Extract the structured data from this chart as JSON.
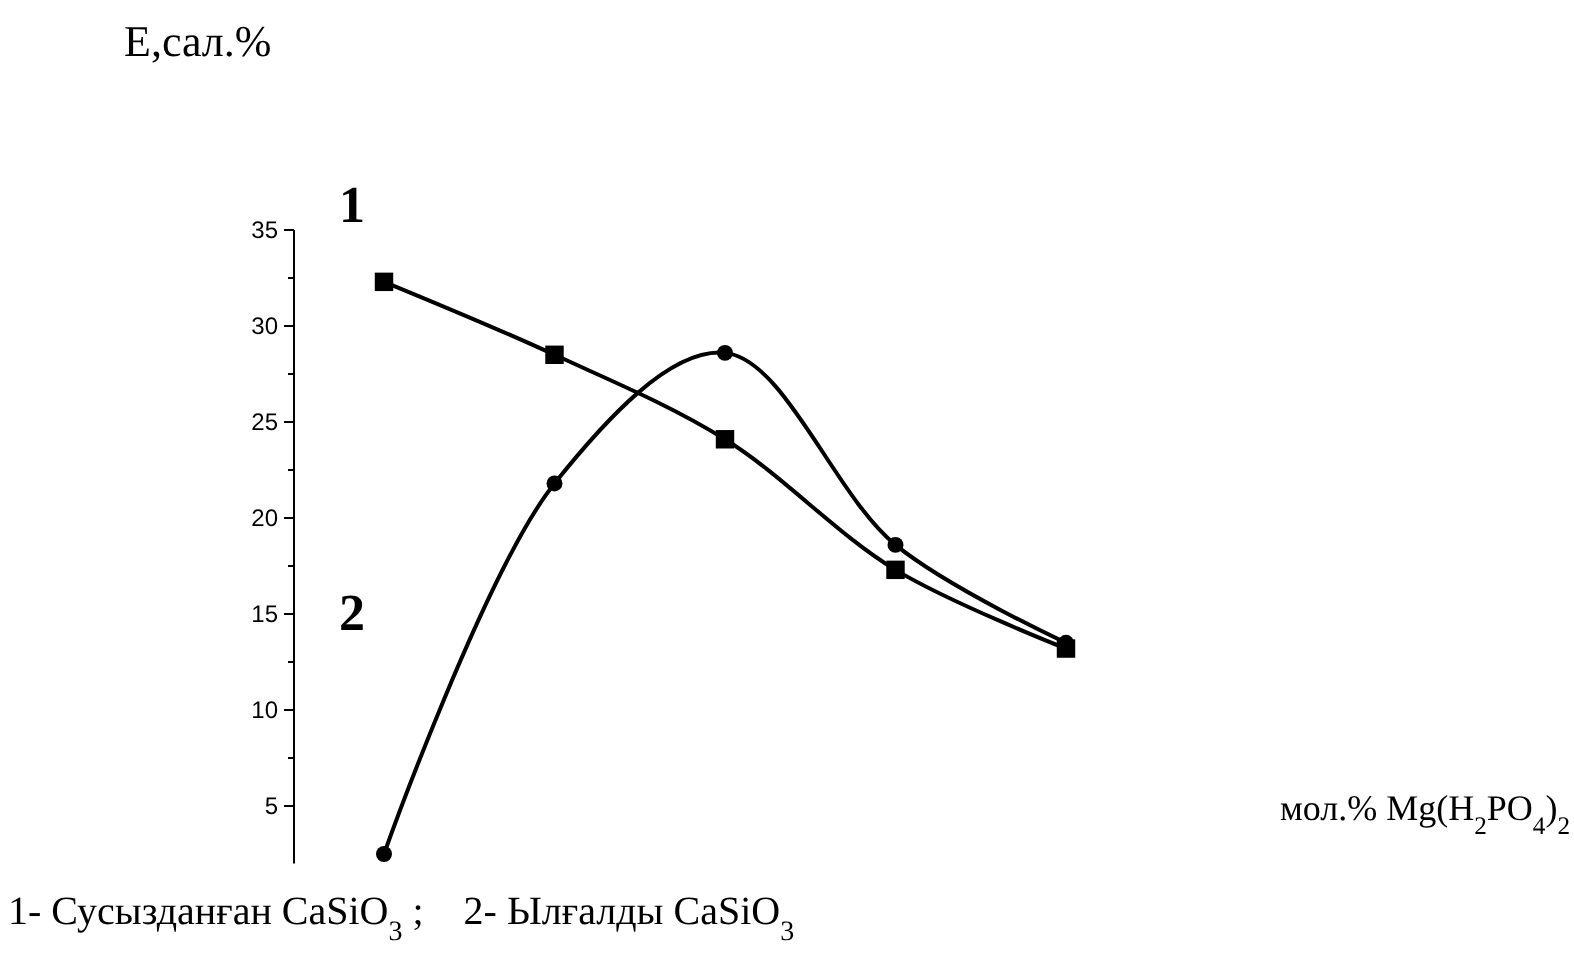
{
  "chart_data": {
    "type": "line",
    "ylabel": "E,сал.%",
    "xlabel": "мол.% Mg(H$_{2}$PO$_{4}$)$_{2}$",
    "categories": [
      null,
      null,
      null,
      null,
      null
    ],
    "series": [
      {
        "name": "1",
        "color": "#000000",
        "marker": "square",
        "values": [
          32.3,
          28.5,
          24.1,
          17.3,
          13.2
        ]
      },
      {
        "name": "2",
        "color": "#000000",
        "marker": "circle",
        "values": [
          2.5,
          21.8,
          28.6,
          18.6,
          13.5
        ]
      }
    ],
    "ylim": [
      2,
      35
    ],
    "yticks": [
      5,
      {
        "value": 7.5,
        "label": null
      },
      10,
      {
        "value": 12.5,
        "label": null
      },
      15,
      {
        "value": 17.5,
        "label": null
      },
      20,
      {
        "value": 22.5,
        "label": null
      },
      25,
      {
        "value": 27.5,
        "label": null
      },
      30,
      {
        "value": 32.5,
        "label": null
      },
      35
    ],
    "tick_labels": "y",
    "grid": false,
    "line_style": "solid",
    "annotations": [
      "1- Сусызданған CaSiO$_{3}$ ;    2- Ылғалды CaSiO$_{3}$"
    ]
  }
}
